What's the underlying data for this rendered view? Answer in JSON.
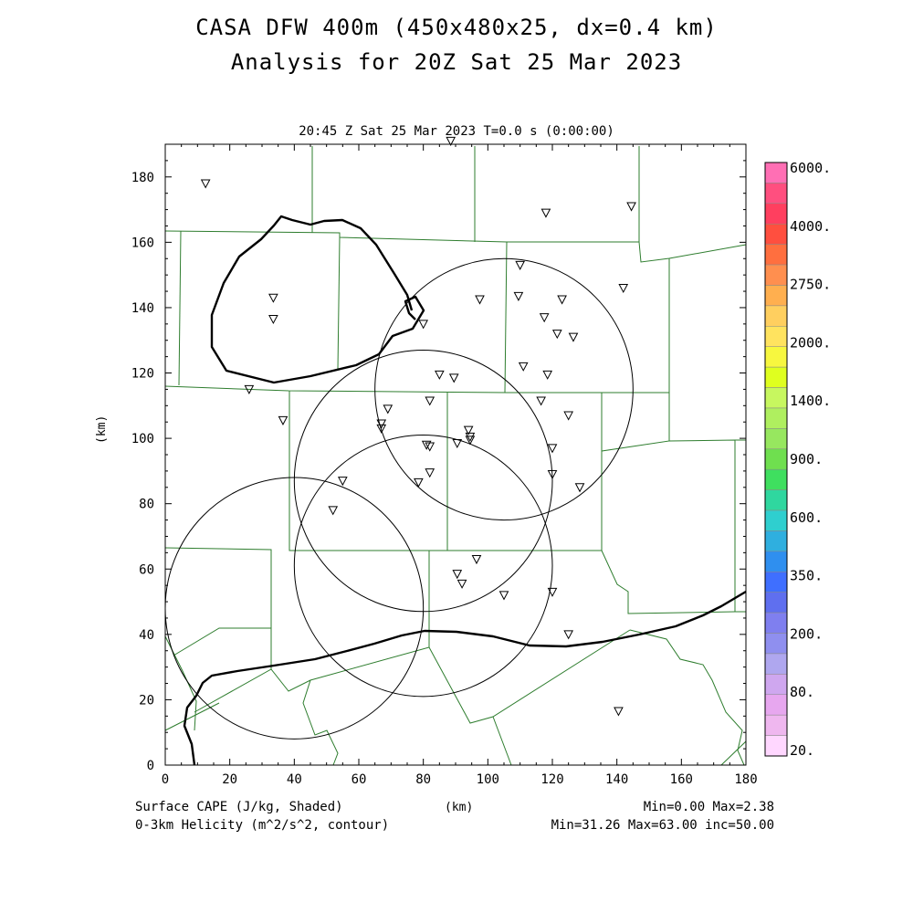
{
  "title": {
    "line1": "CASA DFW 400m (450x480x25, dx=0.4 km)",
    "line2": "Analysis for 20Z Sat 25 Mar 2023"
  },
  "time_label": "20:45 Z Sat 25 Mar 2023   T=0.0 s (0:00:00)",
  "axes": {
    "y_label": "(km)",
    "x_label": "(km)",
    "x_range": [
      0,
      180
    ],
    "y_range": [
      0,
      190
    ],
    "x_ticks": [
      "0",
      "20",
      "40",
      "60",
      "80",
      "100",
      "120",
      "140",
      "160",
      "180"
    ],
    "y_ticks": [
      "0",
      "20",
      "40",
      "60",
      "80",
      "100",
      "120",
      "140",
      "160",
      "180"
    ]
  },
  "footer": {
    "left_line1": "Surface CAPE (J/kg, Shaded)",
    "left_line2": "0-3km Helicity (m^2/s^2, contour)",
    "right_line1": "Min=0.00 Max=2.38",
    "right_line2": "Min=31.26 Max=63.00 inc=50.00"
  },
  "colorbar": {
    "labels": [
      "6000.",
      "4000.",
      "2750.",
      "2000.",
      "1400.",
      "900.",
      "600.",
      "350.",
      "200.",
      "80.",
      "20."
    ],
    "colors": [
      "#ff6fb4",
      "#ff4f7f",
      "#ff3f5f",
      "#ff4f3f",
      "#ff6f3f",
      "#ff8f4f",
      "#ffaf4f",
      "#ffcf5f",
      "#ffe35f",
      "#f7f73f",
      "#dfff1f",
      "#c7f75f",
      "#afef5f",
      "#97e75f",
      "#6fdf4f",
      "#3fdf5f",
      "#2fd79f",
      "#2fcfcf",
      "#2fafdf",
      "#2f8fef",
      "#3f6fff",
      "#5f6fef",
      "#7f7fef",
      "#8f8fef",
      "#afa7ef",
      "#cfa7ef",
      "#e7a7ef",
      "#efb7ef",
      "#ffd7ff"
    ]
  },
  "map_data": {
    "radar_circles_km": [
      {
        "cx": 105,
        "cy": 115,
        "r": 40
      },
      {
        "cx": 80,
        "cy": 87,
        "r": 40
      },
      {
        "cx": 40,
        "cy": 48,
        "r": 40
      },
      {
        "cx": 80,
        "cy": 61,
        "r": 40
      }
    ],
    "stations_km": [
      [
        12.5,
        178
      ],
      [
        88.5,
        191
      ],
      [
        118,
        169
      ],
      [
        144.5,
        171
      ],
      [
        110,
        153
      ],
      [
        142,
        146
      ],
      [
        33.5,
        143
      ],
      [
        97.5,
        142.5
      ],
      [
        109.5,
        143.5
      ],
      [
        123,
        142.5
      ],
      [
        33.5,
        136.5
      ],
      [
        80,
        135
      ],
      [
        117.5,
        137
      ],
      [
        121.5,
        132
      ],
      [
        126.5,
        131
      ],
      [
        111,
        122
      ],
      [
        85,
        119.5
      ],
      [
        89.5,
        118.5
      ],
      [
        118.5,
        119.5
      ],
      [
        26,
        115
      ],
      [
        82,
        111.5
      ],
      [
        116.5,
        111.5
      ],
      [
        69,
        109
      ],
      [
        36.5,
        105.5
      ],
      [
        125,
        107
      ],
      [
        67,
        104.5
      ],
      [
        67,
        103
      ],
      [
        94,
        102.5
      ],
      [
        94.5,
        100.5
      ],
      [
        94.5,
        99.5
      ],
      [
        81,
        98
      ],
      [
        82,
        97.5
      ],
      [
        90.5,
        98.5
      ],
      [
        120,
        97
      ],
      [
        82,
        89.5
      ],
      [
        78.5,
        86.5
      ],
      [
        55,
        87
      ],
      [
        120,
        89
      ],
      [
        128.5,
        85
      ],
      [
        52,
        78
      ],
      [
        96.5,
        63
      ],
      [
        90.5,
        58.5
      ],
      [
        92,
        55.5
      ],
      [
        105,
        52
      ],
      [
        120,
        53
      ],
      [
        125,
        40
      ],
      [
        140.5,
        16.5
      ]
    ]
  }
}
